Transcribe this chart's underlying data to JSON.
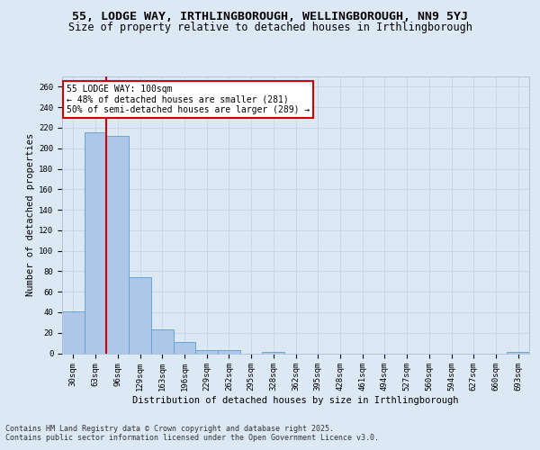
{
  "title_line1": "55, LODGE WAY, IRTHLINGBOROUGH, WELLINGBOROUGH, NN9 5YJ",
  "title_line2": "Size of property relative to detached houses in Irthlingborough",
  "xlabel": "Distribution of detached houses by size in Irthlingborough",
  "ylabel": "Number of detached properties",
  "categories": [
    "30sqm",
    "63sqm",
    "96sqm",
    "129sqm",
    "163sqm",
    "196sqm",
    "229sqm",
    "262sqm",
    "295sqm",
    "328sqm",
    "362sqm",
    "395sqm",
    "428sqm",
    "461sqm",
    "494sqm",
    "527sqm",
    "560sqm",
    "594sqm",
    "627sqm",
    "660sqm",
    "693sqm"
  ],
  "values": [
    41,
    216,
    212,
    74,
    23,
    11,
    3,
    3,
    0,
    1,
    0,
    0,
    0,
    0,
    0,
    0,
    0,
    0,
    0,
    0,
    1
  ],
  "bar_color": "#aec6e8",
  "bar_edge_color": "#5a9fd4",
  "grid_color": "#c8d8e8",
  "background_color": "#dce9f5",
  "vline_x_index": 2,
  "vline_color": "#cc0000",
  "annotation_text": "55 LODGE WAY: 100sqm\n← 48% of detached houses are smaller (281)\n50% of semi-detached houses are larger (289) →",
  "annotation_box_facecolor": "#ffffff",
  "annotation_box_edgecolor": "#cc0000",
  "footer_line1": "Contains HM Land Registry data © Crown copyright and database right 2025.",
  "footer_line2": "Contains public sector information licensed under the Open Government Licence v3.0.",
  "ylim": [
    0,
    270
  ],
  "yticks": [
    0,
    20,
    40,
    60,
    80,
    100,
    120,
    140,
    160,
    180,
    200,
    220,
    240,
    260
  ],
  "figsize": [
    6.0,
    5.0
  ],
  "dpi": 100,
  "title_fontsize": 9.5,
  "subtitle_fontsize": 8.5,
  "axis_label_fontsize": 7.5,
  "tick_fontsize": 6.5,
  "annotation_fontsize": 7,
  "footer_fontsize": 6
}
